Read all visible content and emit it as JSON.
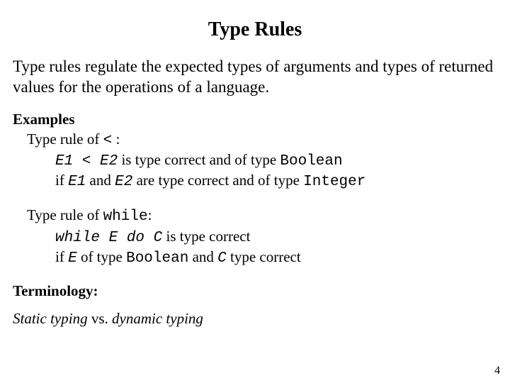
{
  "title": "Type Rules",
  "intro": "Type rules regulate the expected types of arguments and types of returned values for the operations of a language.",
  "examples_label": "Examples",
  "rule1": {
    "lead_a": "Type rule of ",
    "lead_op": "<",
    "lead_b": " :",
    "l1_a": "E1 < E2",
    "l1_b": " is type correct and of type ",
    "l1_c": "Boolean",
    "l2_a": "if ",
    "l2_b": "E1",
    "l2_c": " and ",
    "l2_d": "E2",
    "l2_e": " are type correct and of type ",
    "l2_f": "Integer"
  },
  "rule2": {
    "lead_a": "Type rule of ",
    "lead_op": "while",
    "lead_b": ":",
    "l1_a": "while E do C",
    "l1_b": " is type correct",
    "l2_a": "if ",
    "l2_b": "E",
    "l2_c": " of type ",
    "l2_d": "Boolean",
    "l2_e": " and ",
    "l2_f": "C",
    "l2_g": " type correct"
  },
  "terminology_label": "Terminology:",
  "term_a": "Static typing",
  "term_b": " vs. ",
  "term_c": "dynamic typing",
  "page_number": "4",
  "colors": {
    "background": "#ffffff",
    "text": "#000000"
  }
}
